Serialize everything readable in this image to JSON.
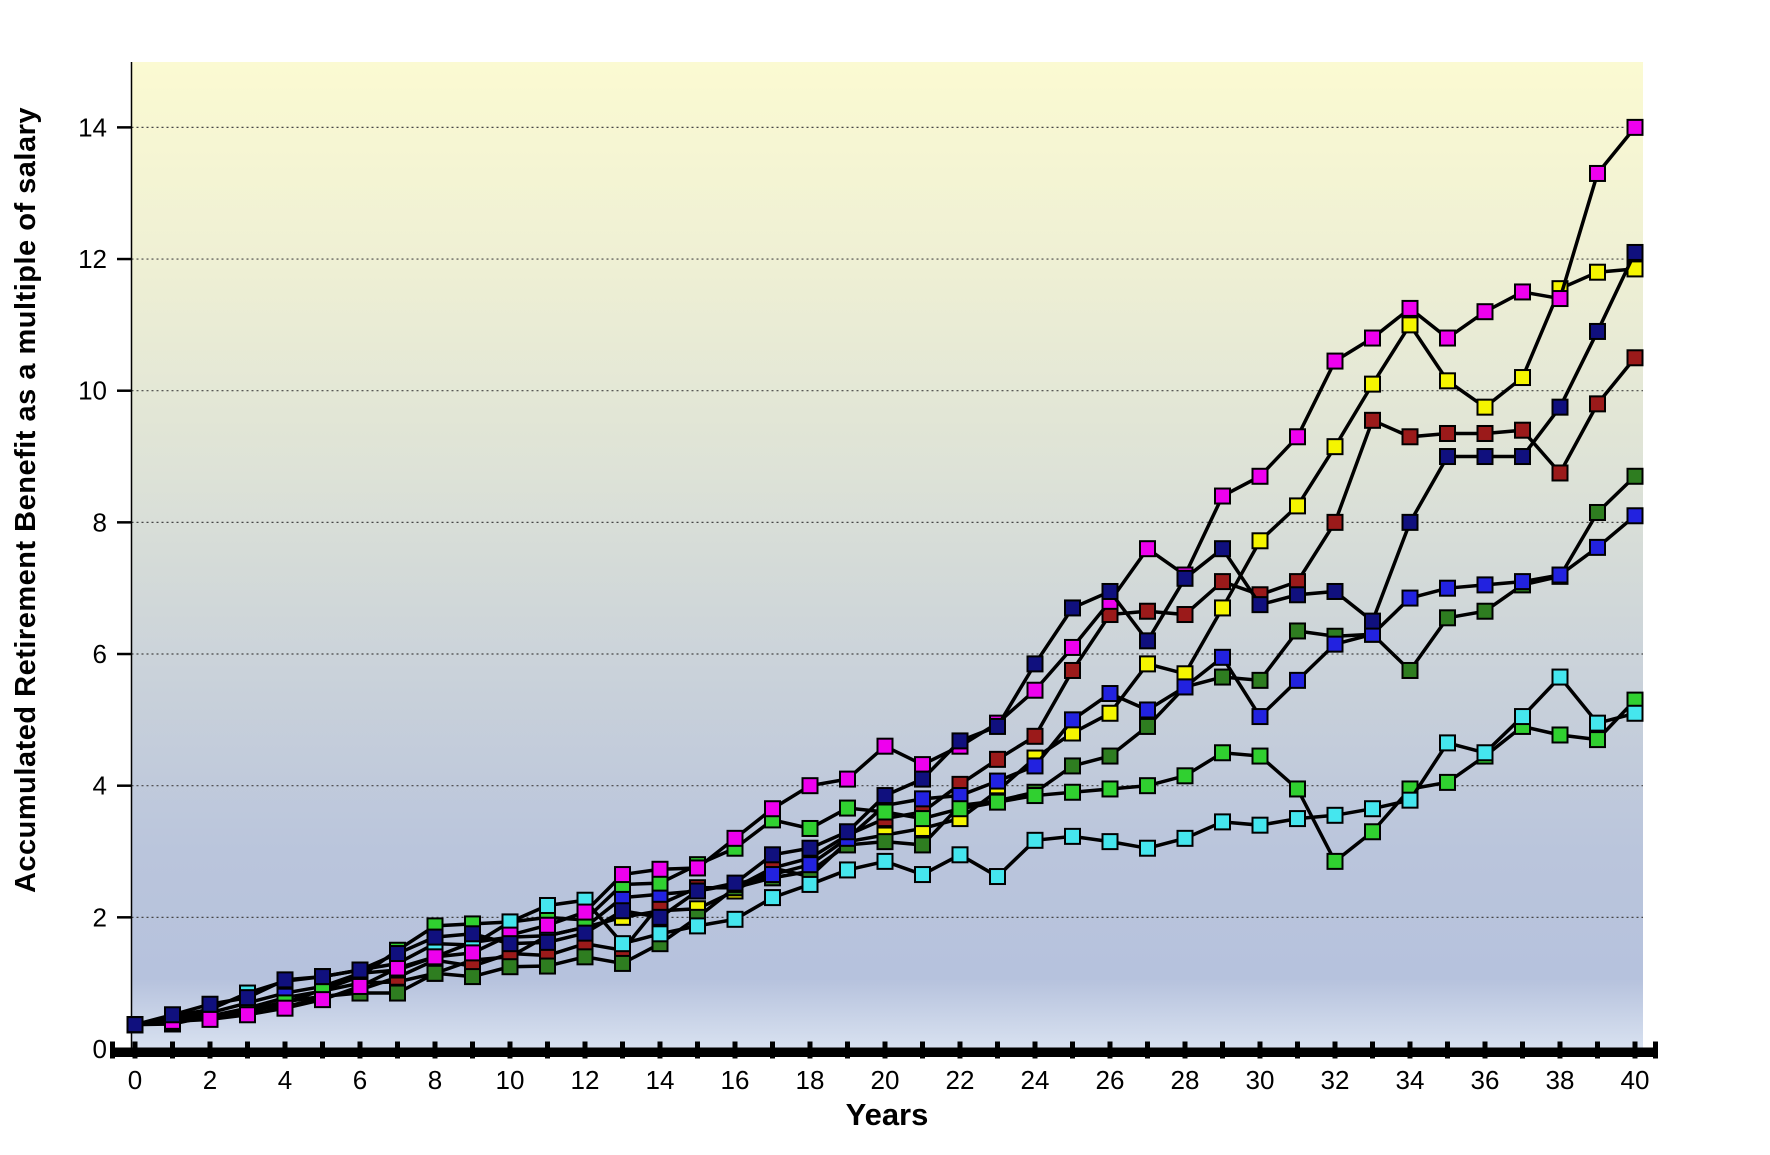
{
  "figure": {
    "y_axis_title": "Accumulated Retirement Benefit as a multiple of salary",
    "x_axis_title": "Years"
  },
  "chart_data": {
    "type": "line",
    "title": "",
    "xlabel": "Years",
    "ylabel": "Accumulated Retirement Benefit as a multiple of salary",
    "xlim": [
      0,
      40
    ],
    "ylim": [
      0,
      15
    ],
    "x_tick_step": 2,
    "x_tick_labels": [
      "0",
      "2",
      "4",
      "6",
      "8",
      "10",
      "12",
      "14",
      "16",
      "18",
      "20",
      "22",
      "24",
      "26",
      "28",
      "30",
      "32",
      "34",
      "36",
      "38",
      "40"
    ],
    "y_tick_values": [
      0,
      2,
      4,
      6,
      8,
      10,
      12,
      14
    ],
    "y_tick_labels": [
      "0",
      "2",
      "4",
      "6",
      "8",
      "10",
      "12",
      "14"
    ],
    "grid": "horizontal-dotted",
    "legend": "none",
    "marker": "square",
    "line_color": "#000000",
    "background_gradient": [
      {
        "offset": 0.0,
        "color": "#FBFAD2"
      },
      {
        "offset": 0.2,
        "color": "#EFF0D4"
      },
      {
        "offset": 0.42,
        "color": "#DDE2D7"
      },
      {
        "offset": 0.62,
        "color": "#CAD2DA"
      },
      {
        "offset": 0.8,
        "color": "#BAC5DC"
      },
      {
        "offset": 0.93,
        "color": "#B6C2DD"
      },
      {
        "offset": 1.0,
        "color": "#D8E1F0"
      }
    ],
    "x": [
      0,
      1,
      2,
      3,
      4,
      5,
      6,
      7,
      8,
      9,
      10,
      11,
      12,
      13,
      14,
      15,
      16,
      17,
      18,
      19,
      20,
      21,
      22,
      23,
      24,
      25,
      26,
      27,
      28,
      29,
      30,
      31,
      32,
      33,
      34,
      35,
      36,
      37,
      38,
      39,
      40
    ],
    "series": [
      {
        "name": "yellow-scenario",
        "color": "#F5F500",
        "values": [
          0.37,
          0.45,
          0.5,
          0.62,
          0.78,
          0.88,
          1.0,
          1.02,
          1.15,
          1.35,
          1.4,
          1.72,
          1.85,
          2.0,
          2.1,
          2.13,
          2.4,
          2.75,
          2.62,
          3.15,
          3.25,
          3.35,
          3.5,
          3.92,
          4.42,
          4.8,
          5.1,
          5.85,
          5.7,
          6.7,
          7.72,
          8.25,
          9.15,
          10.1,
          11.0,
          10.15,
          9.75,
          10.2,
          11.55,
          11.8,
          11.85
        ]
      },
      {
        "name": "dark-red-scenario",
        "color": "#9B1A1A",
        "values": [
          0.37,
          0.42,
          0.48,
          0.6,
          0.64,
          0.78,
          0.9,
          1.09,
          1.35,
          1.26,
          1.45,
          1.42,
          1.6,
          1.5,
          2.2,
          2.45,
          2.45,
          2.75,
          2.9,
          3.25,
          3.5,
          3.6,
          4.02,
          4.4,
          4.75,
          5.75,
          6.6,
          6.65,
          6.6,
          7.1,
          6.9,
          7.1,
          8.0,
          9.55,
          9.3,
          9.35,
          9.35,
          9.4,
          8.75,
          9.8,
          10.5
        ]
      },
      {
        "name": "dark-green-scenario",
        "color": "#2E7D20",
        "values": [
          0.37,
          0.38,
          0.5,
          0.58,
          0.72,
          0.8,
          0.85,
          0.85,
          1.15,
          1.1,
          1.25,
          1.26,
          1.4,
          1.3,
          1.6,
          2.0,
          2.45,
          2.6,
          2.7,
          3.1,
          3.15,
          3.1,
          3.7,
          3.77,
          3.9,
          4.3,
          4.45,
          4.9,
          5.5,
          5.65,
          5.6,
          6.35,
          6.27,
          6.3,
          5.75,
          6.55,
          6.65,
          7.05,
          7.18,
          8.15,
          8.7
        ]
      },
      {
        "name": "blue-scenario",
        "color": "#2222E0",
        "values": [
          0.37,
          0.48,
          0.55,
          0.7,
          0.85,
          0.95,
          1.15,
          1.2,
          1.4,
          1.62,
          1.7,
          1.72,
          1.85,
          2.3,
          2.35,
          2.4,
          2.5,
          2.65,
          2.8,
          3.2,
          3.7,
          3.8,
          3.85,
          4.07,
          4.3,
          5.0,
          5.4,
          5.15,
          5.5,
          5.95,
          5.05,
          5.6,
          6.15,
          6.3,
          6.85,
          7.0,
          7.05,
          7.1,
          7.2,
          7.62,
          8.1
        ]
      },
      {
        "name": "bright-green-scenario",
        "color": "#30D030",
        "values": [
          0.37,
          0.4,
          0.48,
          0.55,
          0.7,
          0.9,
          1.1,
          1.5,
          1.87,
          1.9,
          1.93,
          2.0,
          1.96,
          2.5,
          2.52,
          2.8,
          3.05,
          3.48,
          3.35,
          3.66,
          3.6,
          3.5,
          3.65,
          3.75,
          3.85,
          3.9,
          3.95,
          4.0,
          4.15,
          4.5,
          4.45,
          3.95,
          2.85,
          3.3,
          3.95,
          4.05,
          4.45,
          4.9,
          4.77,
          4.7,
          5.3
        ]
      },
      {
        "name": "cyan-scenario",
        "color": "#45E6EE",
        "values": [
          0.37,
          0.5,
          0.6,
          0.85,
          1.03,
          1.1,
          1.2,
          1.3,
          1.6,
          1.58,
          1.93,
          2.18,
          2.26,
          1.6,
          1.75,
          1.87,
          1.97,
          2.3,
          2.5,
          2.72,
          2.85,
          2.65,
          2.95,
          2.62,
          3.17,
          3.23,
          3.15,
          3.05,
          3.2,
          3.45,
          3.4,
          3.5,
          3.55,
          3.65,
          3.78,
          4.65,
          4.5,
          5.05,
          5.65,
          4.95,
          5.1
        ]
      },
      {
        "name": "magenta-scenario",
        "color": "#EE00EE",
        "values": [
          0.37,
          0.42,
          0.45,
          0.52,
          0.62,
          0.75,
          0.95,
          1.23,
          1.4,
          1.46,
          1.73,
          1.88,
          2.08,
          2.65,
          2.73,
          2.75,
          3.2,
          3.65,
          4.0,
          4.1,
          4.6,
          4.32,
          4.6,
          4.95,
          5.45,
          6.1,
          6.8,
          7.6,
          7.2,
          8.4,
          8.7,
          9.3,
          10.45,
          10.8,
          11.25,
          10.8,
          11.2,
          11.5,
          11.4,
          13.3,
          14.0
        ]
      },
      {
        "name": "navy-scenario",
        "color": "#10107E",
        "values": [
          0.37,
          0.52,
          0.68,
          0.78,
          1.05,
          1.1,
          1.2,
          1.45,
          1.7,
          1.75,
          1.6,
          1.62,
          1.76,
          2.1,
          2.0,
          2.4,
          2.52,
          2.95,
          3.05,
          3.3,
          3.85,
          4.1,
          4.68,
          4.9,
          5.85,
          6.7,
          6.95,
          6.2,
          7.15,
          7.6,
          6.75,
          6.9,
          6.95,
          6.5,
          8.0,
          9.0,
          9.0,
          9.0,
          9.75,
          10.9,
          12.1
        ]
      }
    ]
  }
}
